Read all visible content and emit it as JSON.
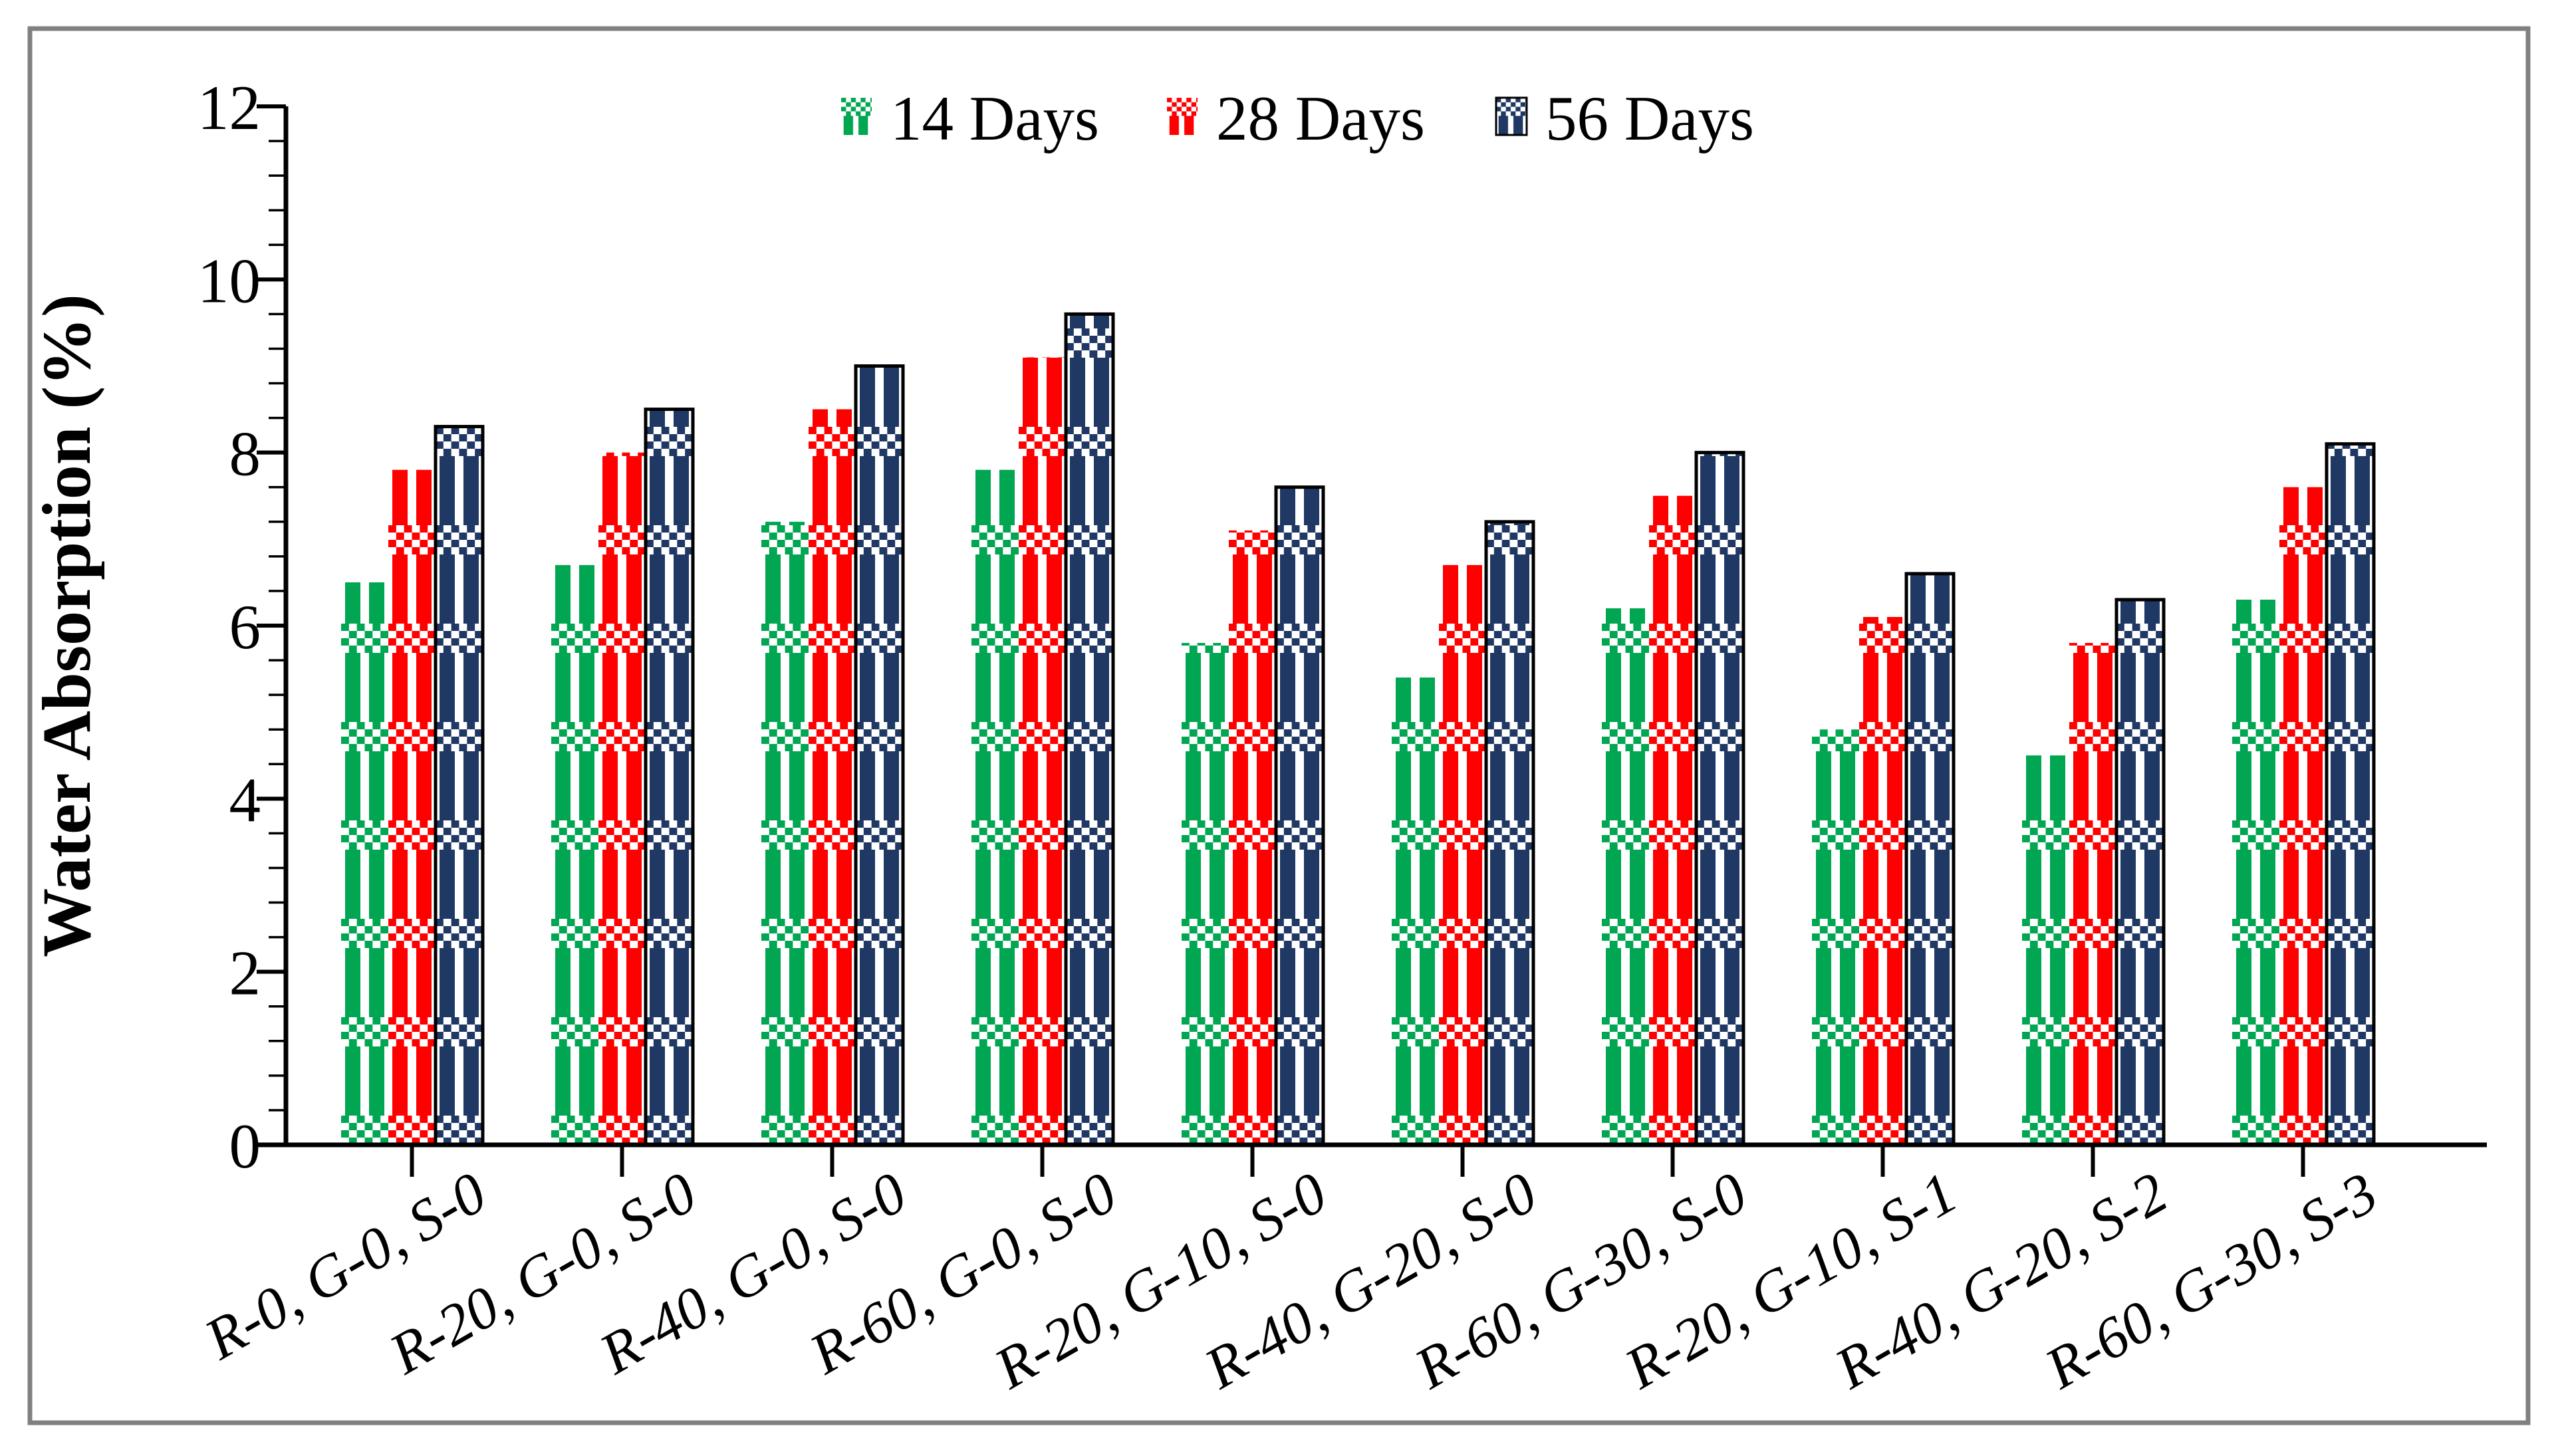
{
  "figure": {
    "background": "#FFFFFF",
    "frame_color": "#808080"
  },
  "y_axis": {
    "title": "Water Absorption (%)",
    "min": 0,
    "max": 12,
    "major_tick_interval": 2,
    "minor_tick_interval": 0.4,
    "tick_labels": [
      "0",
      "2",
      "4",
      "6",
      "8",
      "10",
      "12"
    ]
  },
  "legend": {
    "items": [
      {
        "label": "14 Days",
        "color": "#00A651"
      },
      {
        "label": "28 Days",
        "color": "#FF0000"
      },
      {
        "label": "56 Days",
        "color": "#1F3864"
      }
    ]
  },
  "chart_data": {
    "type": "bar",
    "title": "",
    "xlabel": "",
    "ylabel": "Water Absorption (%)",
    "ylim": [
      0,
      12
    ],
    "yticks": [
      0,
      2,
      4,
      6,
      8,
      10,
      12
    ],
    "grid": false,
    "legend_position": "top-center",
    "bar_fill_style": "checker-gingham-pattern",
    "categories": [
      "R-0, G-0, S-0",
      "R-20, G-0, S-0",
      "R-40, G-0, S-0",
      "R-60, G-0, S-0",
      "R-20, G-10, S-0",
      "R-40, G-20, S-0",
      "R-60, G-30, S-0",
      "R-20, G-10, S-1",
      "R-40, G-20, S-2",
      "R-60, G-30, S-3"
    ],
    "series": [
      {
        "name": "14 Days",
        "color": "#00A651",
        "values": [
          6.5,
          6.7,
          7.2,
          7.8,
          5.8,
          5.4,
          6.2,
          4.8,
          4.5,
          6.3
        ]
      },
      {
        "name": "28 Days",
        "color": "#FF0000",
        "values": [
          7.8,
          8.0,
          8.5,
          9.1,
          7.1,
          6.7,
          7.5,
          6.1,
          5.8,
          7.6
        ]
      },
      {
        "name": "56 Days",
        "color": "#1F3864",
        "values": [
          8.3,
          8.5,
          9.0,
          9.6,
          7.6,
          7.2,
          8.0,
          6.6,
          6.3,
          8.1
        ]
      }
    ]
  }
}
